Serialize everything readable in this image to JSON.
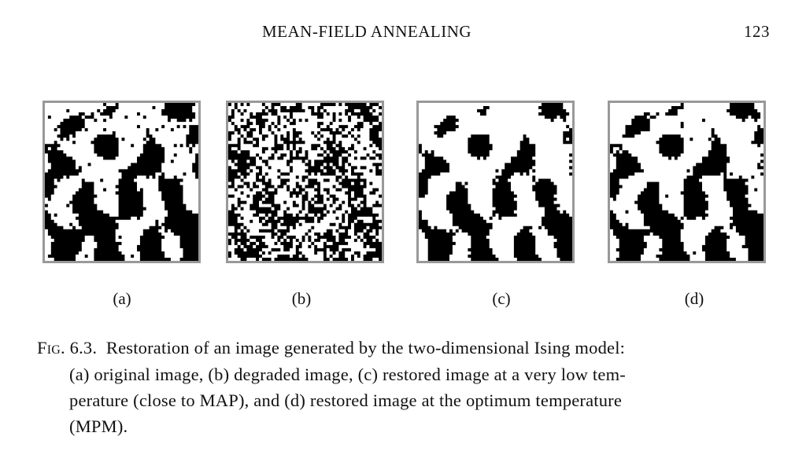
{
  "header": {
    "title": "MEAN-FIELD ANNEALING",
    "page_number": "123"
  },
  "figure": {
    "panels": [
      "(a)",
      "(b)",
      "(c)",
      "(d)"
    ]
  },
  "caption": {
    "label": "Fig. 6.3.",
    "lines": [
      "Restoration of an image generated by the two-dimensional Ising model:",
      "(a) original image, (b) degraded image, (c) restored image at a very low tem-",
      "perature (close to MAP), and (d) restored image at the optimum temperature",
      "(MPM)."
    ]
  }
}
